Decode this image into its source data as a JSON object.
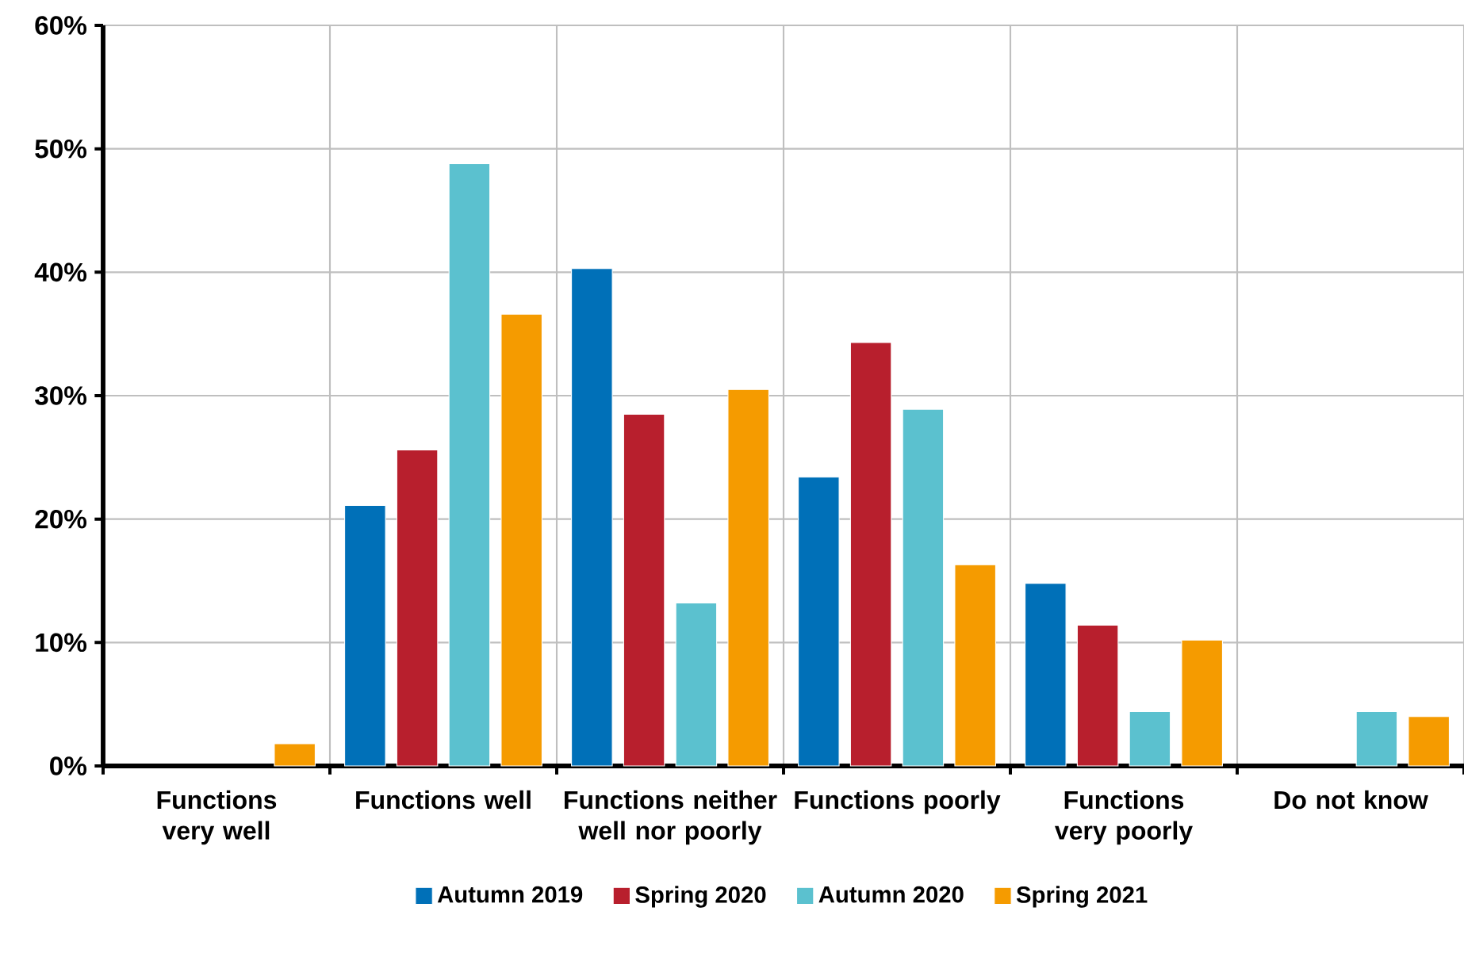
{
  "chart_data": {
    "type": "bar",
    "categories": [
      "Functions very well",
      "Functions well",
      "Functions neither well nor poorly",
      "Functions poorly",
      "Functions very poorly",
      "Do not know"
    ],
    "series": [
      {
        "name": "Autumn 2019",
        "color": "#0070b8",
        "values": [
          null,
          21.1,
          40.3,
          23.4,
          14.8,
          null
        ]
      },
      {
        "name": "Spring 2020",
        "color": "#b81f2d",
        "values": [
          null,
          25.6,
          28.5,
          34.3,
          11.4,
          null
        ]
      },
      {
        "name": "Autumn 2020",
        "color": "#5bc1cf",
        "values": [
          null,
          48.8,
          13.2,
          28.9,
          4.4,
          4.4
        ]
      },
      {
        "name": "Spring 2021",
        "color": "#f59b00",
        "values": [
          1.8,
          36.6,
          30.5,
          16.3,
          10.2,
          4.0
        ]
      }
    ],
    "ylim": [
      0,
      60
    ],
    "yticks": [
      {
        "value": 0,
        "label": "0%"
      },
      {
        "value": 10,
        "label": "10%"
      },
      {
        "value": 20,
        "label": "20%"
      },
      {
        "value": 30,
        "label": "30%"
      },
      {
        "value": 40,
        "label": "40%"
      },
      {
        "value": 50,
        "label": "50%"
      },
      {
        "value": 60,
        "label": "60%"
      }
    ],
    "grid": true,
    "legend": "bottom"
  }
}
